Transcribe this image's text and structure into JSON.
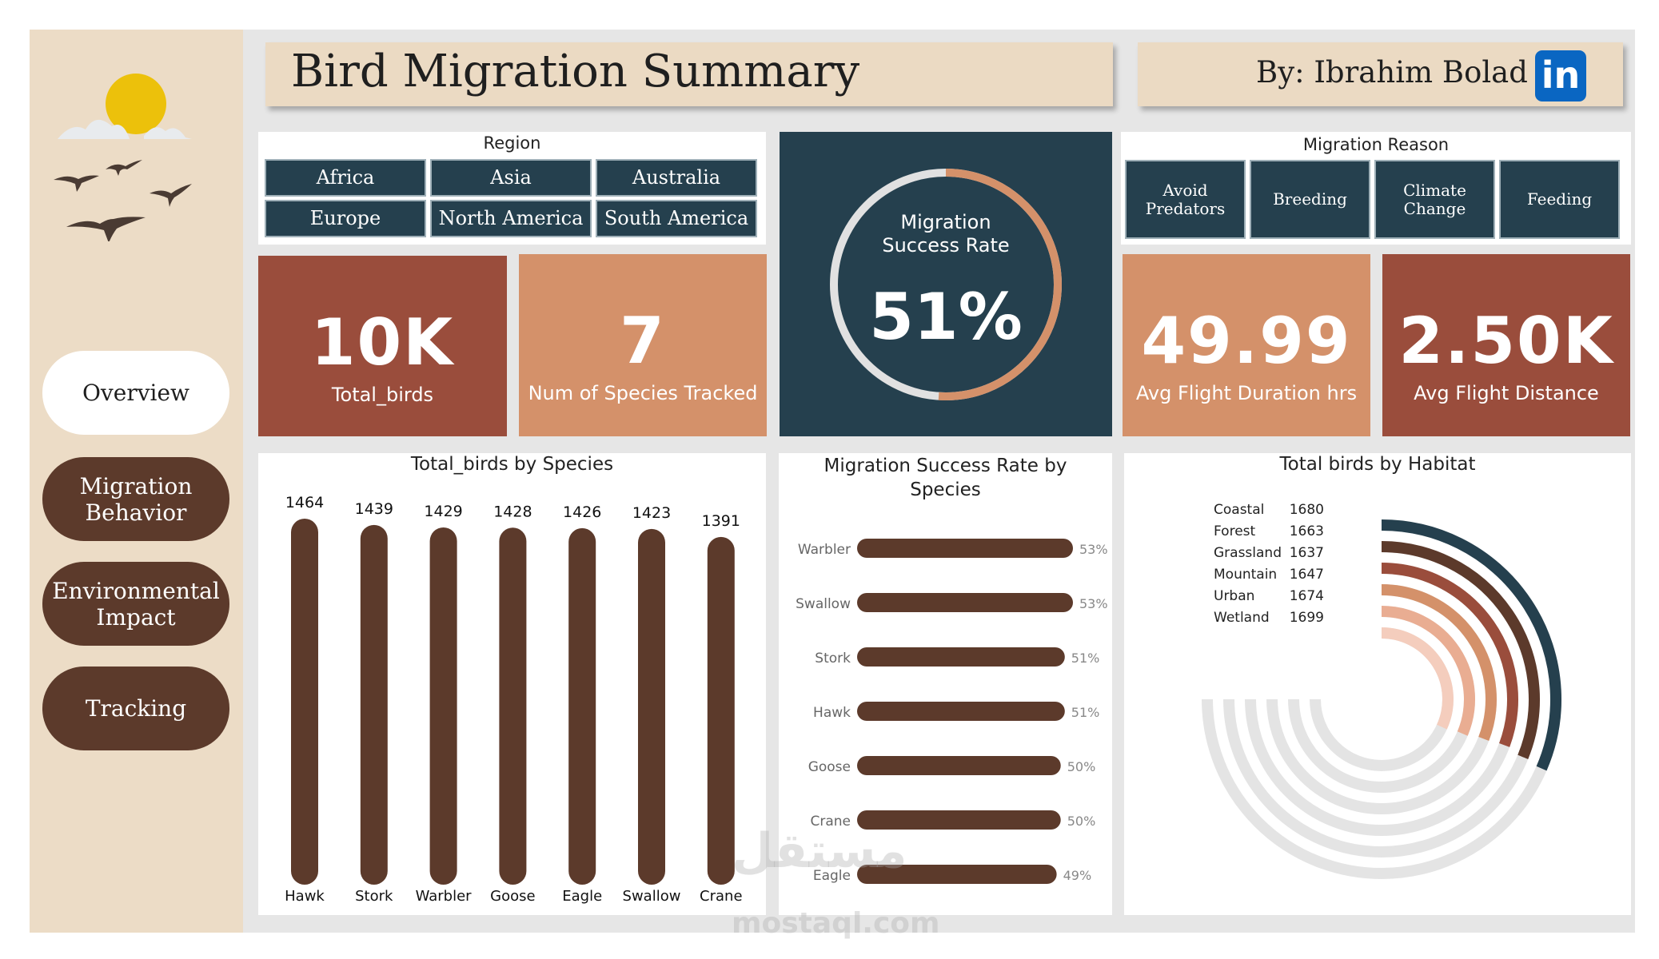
{
  "header": {
    "title": "Bird Migration Summary",
    "author": "By: Ibrahim Bolad",
    "linkedin_text": "in"
  },
  "sidebar": {
    "items": [
      {
        "label": "Overview"
      },
      {
        "label": "Migration\nBehavior"
      },
      {
        "label": "Environmental\nImpact"
      },
      {
        "label": "Tracking"
      }
    ]
  },
  "region_slicer": {
    "title": "Region",
    "options": [
      "Africa",
      "Asia",
      "Australia",
      "Europe",
      "North America",
      "South America"
    ]
  },
  "reason_slicer": {
    "title": "Migration Reason",
    "options": [
      "Avoid\nPredators",
      "Breeding",
      "Climate\nChange",
      "Feeding"
    ]
  },
  "kpis": {
    "total_birds": {
      "value": "10K",
      "label": "Total_birds"
    },
    "species": {
      "value": "7",
      "label": "Num of Species Tracked"
    },
    "duration": {
      "value": "49.99",
      "label": "Avg Flight Duration hrs"
    },
    "distance": {
      "value": "2.50K",
      "label": "Avg Flight Distance"
    }
  },
  "gauge": {
    "label_line1": "Migration",
    "label_line2": "Success Rate",
    "value_text": "51%",
    "value": 51
  },
  "colors": {
    "dark_teal": "#25404e",
    "rust": "#9a4d3c",
    "tan": "#d4916a",
    "brown": "#5c3a2b",
    "beige": "#ecdcc6"
  },
  "watermark": {
    "arabic": "مستقل",
    "latin": "mostaql.com"
  },
  "chart_data": [
    {
      "type": "bar",
      "title": "Total_birds by Species",
      "categories": [
        "Hawk",
        "Stork",
        "Warbler",
        "Goose",
        "Eagle",
        "Swallow",
        "Crane"
      ],
      "values": [
        1464,
        1439,
        1429,
        1428,
        1426,
        1423,
        1391
      ],
      "ylim": [
        0,
        1464
      ]
    },
    {
      "type": "bar",
      "orientation": "horizontal",
      "title": "Migration Success Rate by Species",
      "categories": [
        "Warbler",
        "Swallow",
        "Stork",
        "Hawk",
        "Goose",
        "Crane",
        "Eagle"
      ],
      "values": [
        53,
        53,
        51,
        51,
        50,
        50,
        49
      ],
      "value_labels": [
        "53%",
        "53%",
        "51%",
        "51%",
        "50%",
        "50%",
        "49%"
      ]
    },
    {
      "type": "radial-bar",
      "title": "Total birds by Habitat",
      "categories": [
        "Coastal",
        "Forest",
        "Grassland",
        "Mountain",
        "Urban",
        "Wetland"
      ],
      "values": [
        1680,
        1663,
        1637,
        1647,
        1674,
        1699
      ],
      "series_colors": [
        "#25404e",
        "#5c3a2b",
        "#9a4d3c",
        "#d4916a",
        "#e9ad92",
        "#f4cdbd"
      ]
    }
  ]
}
